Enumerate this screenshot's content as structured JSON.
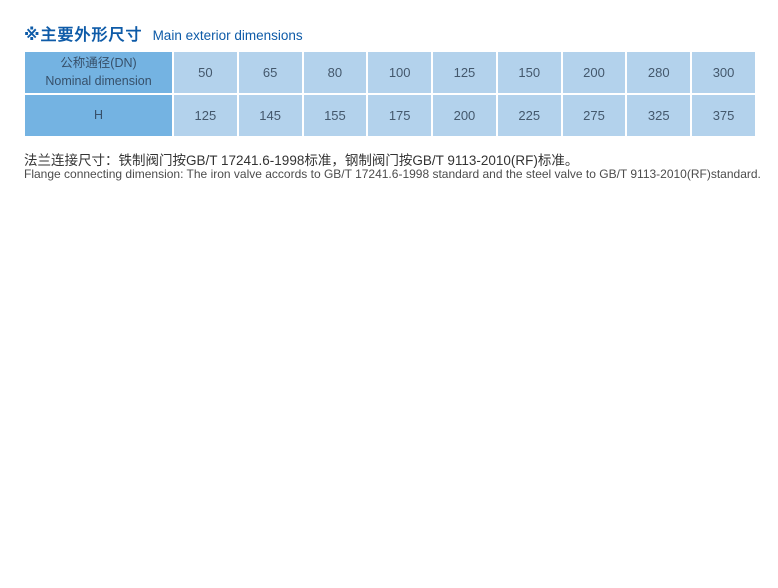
{
  "page": {
    "title_zh": "※主要外形尺寸",
    "title_en": "Main exterior dimensions"
  },
  "table": {
    "row_header": {
      "label_zh": "公称通径(DN)",
      "label_en": "Nominal dimension",
      "values": [
        "50",
        "65",
        "80",
        "100",
        "125",
        "150",
        "200",
        "280",
        "300"
      ]
    },
    "row_h": {
      "label": "H",
      "values": [
        "125",
        "145",
        "155",
        "175",
        "200",
        "225",
        "275",
        "325",
        "375"
      ]
    }
  },
  "notes": {
    "zh": "法兰连接尺寸：铁制阀门按GB/T 17241.6-1998标准，钢制阀门按GB/T 9113-2010(RF)标准。",
    "en": "Flange connecting dimension: The iron valve accords to GB/T 17241.6-1998  standard and the steel valve to GB/T 9113-2010(RF)standard."
  },
  "colors": {
    "title_blue": "#0e5ba8",
    "header_cell_bg": "#74b3e2",
    "data_cell_bg": "#b3d2ec",
    "header_cell_text": "#37506a",
    "data_cell_text": "#44586c",
    "note_zh_text": "#333333",
    "note_en_text": "#4c4c4c"
  }
}
